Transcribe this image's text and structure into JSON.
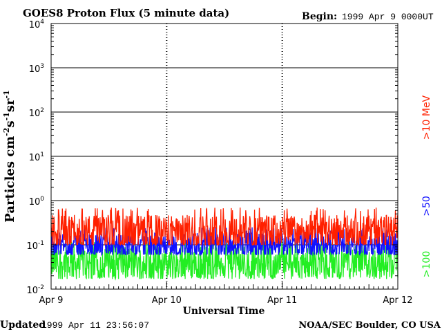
{
  "header": {
    "title": "GOES8 Proton Flux (5 minute data)",
    "begin_label": "Begin:",
    "begin_value": "1999 Apr 9 0000UT"
  },
  "footer": {
    "updated_label": "Updated",
    "updated_value": "1999 Apr 11 23:56:07",
    "credit": "NOAA/SEC Boulder, CO USA"
  },
  "chart_data": {
    "type": "line",
    "title": "GOES8 Proton Flux (5 minute data)",
    "xlabel": "Universal Time",
    "ylabel_html_parts": [
      "Particles cm",
      "-2",
      "s",
      "-1",
      "sr",
      "-1"
    ],
    "y_scale": "log",
    "ylim": [
      0.01,
      10000
    ],
    "y_ticks": [
      {
        "value": 0.01,
        "base": "10",
        "exp": "-2"
      },
      {
        "value": 0.1,
        "base": "10",
        "exp": "-1"
      },
      {
        "value": 1,
        "base": "10",
        "exp": "0"
      },
      {
        "value": 10,
        "base": "10",
        "exp": "1"
      },
      {
        "value": 100,
        "base": "10",
        "exp": "2"
      },
      {
        "value": 1000,
        "base": "10",
        "exp": "3"
      },
      {
        "value": 10000,
        "base": "10",
        "exp": "4"
      }
    ],
    "x_ticks": [
      "Apr 9",
      "Apr 10",
      "Apr 11",
      "Apr 12"
    ],
    "xlim_days": [
      0,
      3
    ],
    "grid": true,
    "series": [
      {
        "name": ">10 MeV",
        "color": "#ff2000",
        "typical": 0.2,
        "min": 0.1,
        "max": 0.7
      },
      {
        "name": ">50",
        "color": "#1010ff",
        "typical": 0.1,
        "min": 0.06,
        "max": 0.25
      },
      {
        "name": ">100",
        "color": "#22ee22",
        "typical": 0.04,
        "min": 0.017,
        "max": 0.13
      }
    ]
  }
}
